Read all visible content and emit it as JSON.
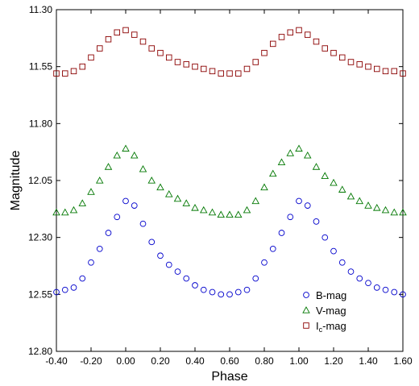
{
  "chart_data": {
    "type": "scatter",
    "title": "",
    "xlabel": "Phase",
    "ylabel": "Magnitude",
    "xlim": [
      -0.4,
      1.6
    ],
    "ylim": [
      11.3,
      12.8
    ],
    "y_inverted": true,
    "grid": false,
    "legend_position": "bottom-right",
    "x_ticks": [
      "-0.40",
      "-0.20",
      "0.00",
      "0.20",
      "0.40",
      "0.60",
      "0.80",
      "1.00",
      "1.20",
      "1.40",
      "1.60"
    ],
    "y_ticks": [
      "11.30",
      "11.55",
      "11.80",
      "12.05",
      "12.30",
      "12.55",
      "12.80"
    ],
    "legend": [
      {
        "name": "B-mag",
        "main": "B-mag",
        "sub": "",
        "rest": ""
      },
      {
        "name": "V-mag",
        "main": "V-mag",
        "sub": "",
        "rest": ""
      },
      {
        "name": "Ic-mag",
        "main": "I",
        "sub": "c",
        "rest": "-mag"
      }
    ],
    "series": [
      {
        "name": "B-mag",
        "marker": "circle",
        "color": "#0000cc",
        "x": [
          -0.4,
          -0.35,
          -0.3,
          -0.25,
          -0.2,
          -0.15,
          -0.1,
          -0.05,
          0.0,
          0.05,
          0.1,
          0.15,
          0.2,
          0.25,
          0.3,
          0.35,
          0.4,
          0.45,
          0.5,
          0.55,
          0.6,
          0.65,
          0.7,
          0.75,
          0.8,
          0.85,
          0.9,
          0.95,
          1.0,
          1.05,
          1.1,
          1.15,
          1.2,
          1.25,
          1.3,
          1.35,
          1.4,
          1.45,
          1.5,
          1.55,
          1.6
        ],
        "y": [
          12.54,
          12.53,
          12.52,
          12.48,
          12.41,
          12.35,
          12.28,
          12.21,
          12.14,
          12.16,
          12.24,
          12.32,
          12.38,
          12.42,
          12.45,
          12.48,
          12.51,
          12.53,
          12.54,
          12.55,
          12.55,
          12.54,
          12.53,
          12.48,
          12.41,
          12.35,
          12.28,
          12.21,
          12.14,
          12.16,
          12.23,
          12.3,
          12.36,
          12.41,
          12.45,
          12.48,
          12.5,
          12.52,
          12.53,
          12.54,
          12.55
        ]
      },
      {
        "name": "V-mag",
        "marker": "triangle",
        "color": "#007700",
        "x": [
          -0.4,
          -0.35,
          -0.3,
          -0.25,
          -0.2,
          -0.15,
          -0.1,
          -0.05,
          0.0,
          0.05,
          0.1,
          0.15,
          0.2,
          0.25,
          0.3,
          0.35,
          0.4,
          0.45,
          0.5,
          0.55,
          0.6,
          0.65,
          0.7,
          0.75,
          0.8,
          0.85,
          0.9,
          0.95,
          1.0,
          1.05,
          1.1,
          1.15,
          1.2,
          1.25,
          1.3,
          1.35,
          1.4,
          1.45,
          1.5,
          1.55,
          1.6
        ],
        "y": [
          12.19,
          12.19,
          12.18,
          12.15,
          12.1,
          12.05,
          11.99,
          11.94,
          11.91,
          11.94,
          12.0,
          12.05,
          12.08,
          12.11,
          12.13,
          12.15,
          12.17,
          12.18,
          12.19,
          12.2,
          12.2,
          12.2,
          12.18,
          12.14,
          12.08,
          12.02,
          11.97,
          11.93,
          11.91,
          11.94,
          11.99,
          12.03,
          12.06,
          12.09,
          12.12,
          12.14,
          12.16,
          12.17,
          12.18,
          12.19,
          12.19
        ]
      },
      {
        "name": "Ic-mag",
        "marker": "square",
        "color": "#8b0000",
        "x": [
          -0.4,
          -0.35,
          -0.3,
          -0.25,
          -0.2,
          -0.15,
          -0.1,
          -0.05,
          0.0,
          0.05,
          0.1,
          0.15,
          0.2,
          0.25,
          0.3,
          0.35,
          0.4,
          0.45,
          0.5,
          0.55,
          0.6,
          0.65,
          0.7,
          0.75,
          0.8,
          0.85,
          0.9,
          0.95,
          1.0,
          1.05,
          1.1,
          1.15,
          1.2,
          1.25,
          1.3,
          1.35,
          1.4,
          1.45,
          1.5,
          1.55,
          1.6
        ],
        "y": [
          11.58,
          11.58,
          11.57,
          11.55,
          11.51,
          11.47,
          11.43,
          11.4,
          11.39,
          11.41,
          11.44,
          11.47,
          11.49,
          11.51,
          11.53,
          11.54,
          11.55,
          11.56,
          11.57,
          11.58,
          11.58,
          11.58,
          11.56,
          11.53,
          11.49,
          11.45,
          11.42,
          11.4,
          11.39,
          11.41,
          11.44,
          11.47,
          11.49,
          11.51,
          11.53,
          11.54,
          11.55,
          11.56,
          11.57,
          11.57,
          11.58
        ]
      }
    ]
  }
}
